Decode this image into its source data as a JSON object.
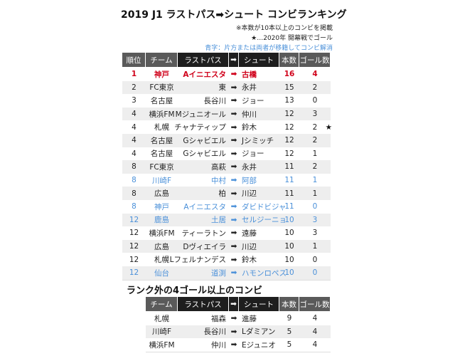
{
  "header": {
    "title": "2019 J1 ラストパス➡シュート コンビランキング",
    "notes": [
      "※本数が10本以上のコンビを掲載",
      "★…2020年 開幕戦でゴール"
    ],
    "legend": {
      "text": "青字：片方または両者が移籍してコンビ解消",
      "color": "#4a90d9"
    }
  },
  "table": {
    "columns": [
      "順位",
      "チーム",
      "ラストパス",
      "シュート",
      "本数",
      "ゴール数"
    ],
    "rows": [
      {
        "rank": 1,
        "team": "神戸",
        "pass": "Aイニエスタ",
        "shot": "古橋",
        "count": 16,
        "goals": 4,
        "color": "#d0021b"
      },
      {
        "rank": 2,
        "team": "FC東京",
        "pass": "東",
        "shot": "永井",
        "count": 15,
        "goals": 2,
        "color": "#222222"
      },
      {
        "rank": 3,
        "team": "名古屋",
        "pass": "長谷川",
        "shot": "ジョー",
        "count": 13,
        "goals": 0,
        "color": "#222222"
      },
      {
        "rank": 4,
        "team": "横浜FM",
        "pass": "Mジュニオール",
        "shot": "仲川",
        "count": 12,
        "goals": 3,
        "color": "#222222"
      },
      {
        "rank": 4,
        "team": "札幌",
        "pass": "チャナティップ",
        "shot": "鈴木",
        "count": 12,
        "goals": 2,
        "color": "#222222",
        "note": "★"
      },
      {
        "rank": 4,
        "team": "名古屋",
        "pass": "Gシャビエル",
        "shot": "Jシミッチ",
        "count": 12,
        "goals": 2,
        "color": "#222222"
      },
      {
        "rank": 4,
        "team": "名古屋",
        "pass": "Gシャビエル",
        "shot": "ジョー",
        "count": 12,
        "goals": 1,
        "color": "#222222"
      },
      {
        "rank": 8,
        "team": "FC東京",
        "pass": "高萩",
        "shot": "永井",
        "count": 11,
        "goals": 2,
        "color": "#222222"
      },
      {
        "rank": 8,
        "team": "川崎F",
        "pass": "中村",
        "shot": "阿部",
        "count": 11,
        "goals": 1,
        "color": "#4a90d9"
      },
      {
        "rank": 8,
        "team": "広島",
        "pass": "柏",
        "shot": "川辺",
        "count": 11,
        "goals": 1,
        "color": "#222222"
      },
      {
        "rank": 8,
        "team": "神戸",
        "pass": "Aイニエスタ",
        "shot": "ダビドビジャ",
        "count": 11,
        "goals": 0,
        "color": "#4a90d9"
      },
      {
        "rank": 12,
        "team": "鹿島",
        "pass": "土居",
        "shot": "セルジーニョ",
        "count": 10,
        "goals": 3,
        "color": "#4a90d9"
      },
      {
        "rank": 12,
        "team": "横浜FM",
        "pass": "ティーラトン",
        "shot": "遠藤",
        "count": 10,
        "goals": 3,
        "color": "#222222"
      },
      {
        "rank": 12,
        "team": "広島",
        "pass": "Dヴィエイラ",
        "shot": "川辺",
        "count": 10,
        "goals": 1,
        "color": "#222222"
      },
      {
        "rank": 12,
        "team": "札幌",
        "pass": "Lフェルナンデス",
        "shot": "鈴木",
        "count": 10,
        "goals": 0,
        "color": "#222222"
      },
      {
        "rank": 12,
        "team": "仙台",
        "pass": "道渕",
        "shot": "ハモンロペス",
        "count": 10,
        "goals": 0,
        "color": "#4a90d9"
      }
    ]
  },
  "table2": {
    "title": "ランク外の4ゴール以上のコンビ",
    "columns": [
      "チーム",
      "ラストパス",
      "シュート",
      "本数",
      "ゴール数"
    ],
    "rows": [
      {
        "team": "札幌",
        "pass": "福森",
        "shot": "進藤",
        "count": 9,
        "goals": 4,
        "color": "#222222"
      },
      {
        "team": "川崎F",
        "pass": "長谷川",
        "shot": "Lダミアン",
        "count": 5,
        "goals": 4,
        "color": "#222222"
      },
      {
        "team": "横浜FM",
        "pass": "仲川",
        "shot": "Eジュニオ",
        "count": 5,
        "goals": 4,
        "color": "#222222"
      }
    ]
  }
}
